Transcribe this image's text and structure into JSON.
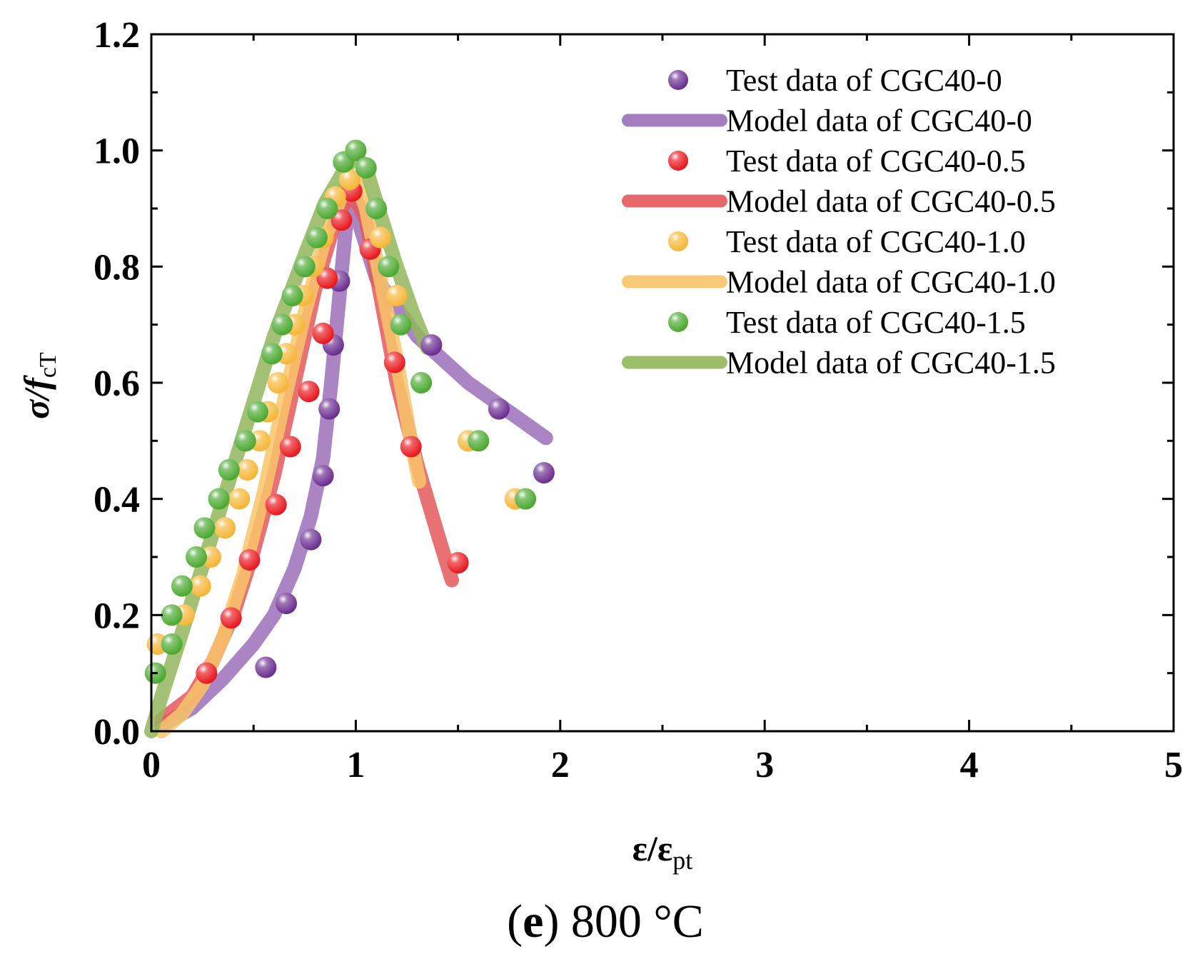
{
  "chart_data": {
    "type": "scatter",
    "caption": {
      "open": "(",
      "letter": "e",
      "rest": ") 800 °C"
    },
    "xlabel": {
      "main": "ε/ε",
      "sub": "pt"
    },
    "ylabel": {
      "main": "σ/",
      "italic": "f",
      "sub": "cT"
    },
    "xlim": [
      0,
      5
    ],
    "ylim": [
      0,
      1.2
    ],
    "xticks": [
      "0",
      "1",
      "2",
      "3",
      "4",
      "5"
    ],
    "yticks": [
      "0.0",
      "0.2",
      "0.4",
      "0.6",
      "0.8",
      "1.0",
      "1.2"
    ],
    "legend_position": "top-right",
    "series": [
      {
        "name": "CGC40-0",
        "test_label": "Test data of CGC40-0",
        "model_label": "Model data of CGC40-0",
        "color": "#6a2d8f",
        "model_color": "#9b6fb8",
        "test": [
          [
            0.56,
            0.11
          ],
          [
            0.66,
            0.22
          ],
          [
            0.78,
            0.33
          ],
          [
            0.84,
            0.44
          ],
          [
            0.87,
            0.555
          ],
          [
            0.89,
            0.665
          ],
          [
            0.92,
            0.775
          ],
          [
            1.37,
            0.665
          ],
          [
            1.7,
            0.555
          ],
          [
            1.92,
            0.445
          ]
        ],
        "model": [
          [
            0.05,
            0.01
          ],
          [
            0.2,
            0.04
          ],
          [
            0.35,
            0.09
          ],
          [
            0.5,
            0.15
          ],
          [
            0.6,
            0.2
          ],
          [
            0.7,
            0.28
          ],
          [
            0.78,
            0.37
          ],
          [
            0.84,
            0.47
          ],
          [
            0.88,
            0.6
          ],
          [
            0.92,
            0.75
          ],
          [
            0.96,
            0.9
          ],
          [
            0.98,
            0.93
          ],
          [
            1.02,
            0.87
          ],
          [
            1.1,
            0.78
          ],
          [
            1.3,
            0.68
          ],
          [
            1.55,
            0.6
          ],
          [
            1.75,
            0.55
          ],
          [
            1.93,
            0.505
          ]
        ]
      },
      {
        "name": "CGC40-0.5",
        "test_label": "Test data of CGC40-0.5",
        "model_label": "Model data of CGC40-0.5",
        "color": "#e8161c",
        "model_color": "#e4585a",
        "test": [
          [
            0.27,
            0.1
          ],
          [
            0.39,
            0.195
          ],
          [
            0.48,
            0.295
          ],
          [
            0.61,
            0.39
          ],
          [
            0.68,
            0.49
          ],
          [
            0.77,
            0.585
          ],
          [
            0.84,
            0.685
          ],
          [
            0.86,
            0.78
          ],
          [
            0.93,
            0.88
          ],
          [
            0.98,
            0.93
          ],
          [
            1.07,
            0.83
          ],
          [
            1.19,
            0.635
          ],
          [
            1.27,
            0.49
          ],
          [
            1.5,
            0.29
          ]
        ],
        "model": [
          [
            0.05,
            0.02
          ],
          [
            0.2,
            0.06
          ],
          [
            0.3,
            0.12
          ],
          [
            0.4,
            0.2
          ],
          [
            0.5,
            0.31
          ],
          [
            0.6,
            0.44
          ],
          [
            0.7,
            0.6
          ],
          [
            0.8,
            0.76
          ],
          [
            0.9,
            0.88
          ],
          [
            0.98,
            0.93
          ],
          [
            1.05,
            0.88
          ],
          [
            1.12,
            0.75
          ],
          [
            1.2,
            0.6
          ],
          [
            1.3,
            0.46
          ],
          [
            1.4,
            0.34
          ],
          [
            1.47,
            0.26
          ]
        ]
      },
      {
        "name": "CGC40-1.0",
        "test_label": "Test data of CGC40-1.0",
        "model_label": "Model data of CGC40-1.0",
        "color": "#f6b535",
        "model_color": "#f8c56a",
        "test": [
          [
            0.03,
            0.15
          ],
          [
            0.16,
            0.2
          ],
          [
            0.24,
            0.25
          ],
          [
            0.29,
            0.3
          ],
          [
            0.36,
            0.35
          ],
          [
            0.43,
            0.4
          ],
          [
            0.47,
            0.45
          ],
          [
            0.53,
            0.5
          ],
          [
            0.57,
            0.55
          ],
          [
            0.62,
            0.6
          ],
          [
            0.66,
            0.65
          ],
          [
            0.7,
            0.7
          ],
          [
            0.74,
            0.75
          ],
          [
            0.79,
            0.8
          ],
          [
            0.84,
            0.85
          ],
          [
            0.9,
            0.92
          ],
          [
            0.97,
            0.95
          ],
          [
            1.12,
            0.85
          ],
          [
            1.2,
            0.75
          ],
          [
            1.55,
            0.5
          ],
          [
            1.78,
            0.4
          ]
        ],
        "model": [
          [
            0.05,
            0.0
          ],
          [
            0.15,
            0.03
          ],
          [
            0.25,
            0.08
          ],
          [
            0.35,
            0.16
          ],
          [
            0.45,
            0.27
          ],
          [
            0.55,
            0.41
          ],
          [
            0.65,
            0.57
          ],
          [
            0.75,
            0.72
          ],
          [
            0.85,
            0.85
          ],
          [
            0.95,
            0.94
          ],
          [
            1.0,
            0.95
          ],
          [
            1.05,
            0.9
          ],
          [
            1.12,
            0.78
          ],
          [
            1.2,
            0.64
          ],
          [
            1.27,
            0.5
          ],
          [
            1.31,
            0.43
          ]
        ]
      },
      {
        "name": "CGC40-1.5",
        "test_label": "Test data of CGC40-1.5",
        "model_label": "Model data of CGC40-1.5",
        "color": "#4aa82f",
        "model_color": "#93b65c",
        "test": [
          [
            0.02,
            0.1
          ],
          [
            0.1,
            0.15
          ],
          [
            0.1,
            0.2
          ],
          [
            0.15,
            0.25
          ],
          [
            0.22,
            0.3
          ],
          [
            0.26,
            0.35
          ],
          [
            0.33,
            0.4
          ],
          [
            0.38,
            0.45
          ],
          [
            0.46,
            0.5
          ],
          [
            0.52,
            0.55
          ],
          [
            0.59,
            0.65
          ],
          [
            0.64,
            0.7
          ],
          [
            0.69,
            0.75
          ],
          [
            0.75,
            0.8
          ],
          [
            0.81,
            0.85
          ],
          [
            0.86,
            0.9
          ],
          [
            0.94,
            0.98
          ],
          [
            1.0,
            1.0
          ],
          [
            1.05,
            0.97
          ],
          [
            1.1,
            0.9
          ],
          [
            1.16,
            0.8
          ],
          [
            1.22,
            0.7
          ],
          [
            1.32,
            0.6
          ],
          [
            1.6,
            0.5
          ],
          [
            1.83,
            0.4
          ]
        ],
        "model": [
          [
            0.0,
            0.0
          ],
          [
            0.05,
            0.06
          ],
          [
            0.15,
            0.17
          ],
          [
            0.3,
            0.34
          ],
          [
            0.45,
            0.51
          ],
          [
            0.6,
            0.68
          ],
          [
            0.75,
            0.82
          ],
          [
            0.85,
            0.91
          ],
          [
            0.95,
            0.97
          ],
          [
            1.0,
            0.99
          ],
          [
            1.05,
            0.97
          ],
          [
            1.12,
            0.89
          ],
          [
            1.2,
            0.8
          ],
          [
            1.28,
            0.72
          ],
          [
            1.35,
            0.66
          ]
        ]
      }
    ]
  }
}
